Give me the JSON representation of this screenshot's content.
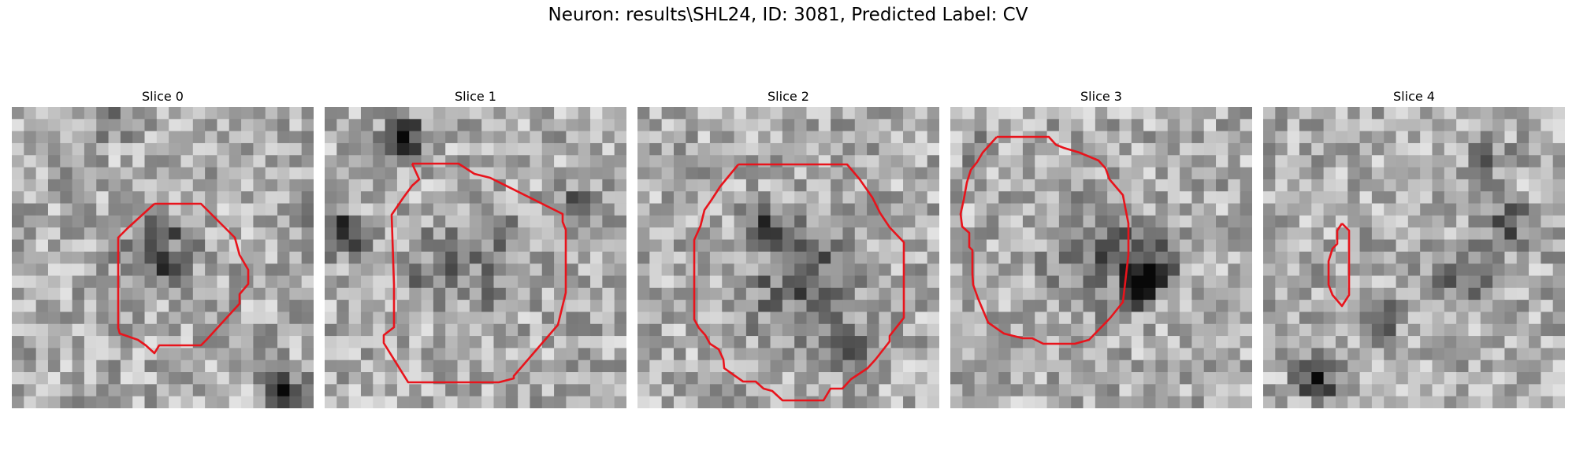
{
  "figure": {
    "title": "Neuron: results\\SHL24, ID: 3081, Predicted Label: CV"
  },
  "panels": [
    {
      "title": "Slice 0"
    },
    {
      "title": "Slice 1"
    },
    {
      "title": "Slice 2"
    },
    {
      "title": "Slice 3"
    },
    {
      "title": "Slice 4"
    }
  ],
  "colors": {
    "contour": "#e8141c",
    "background": "#ffffff"
  }
}
